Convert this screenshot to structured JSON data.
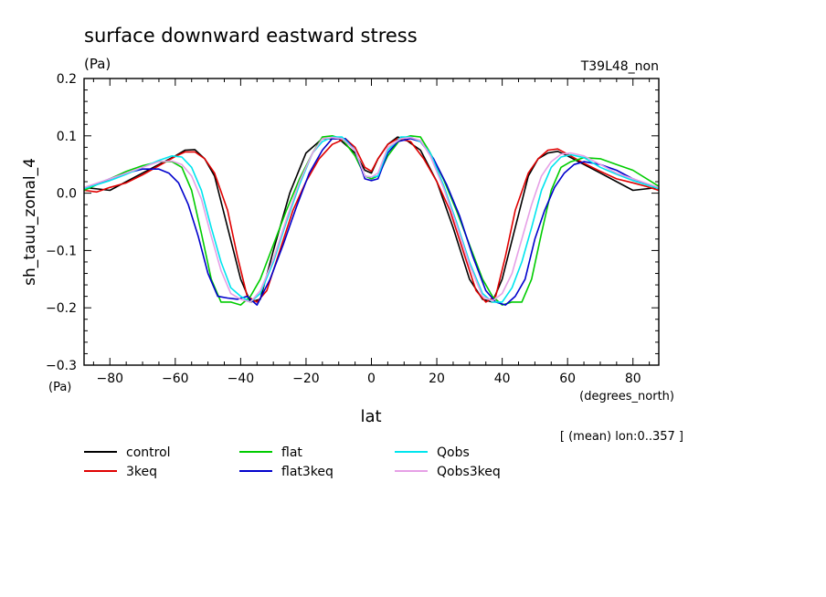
{
  "header": {
    "title": "surface downward eastward stress",
    "units": "(Pa)",
    "run_label": "T39L48_non"
  },
  "axes": {
    "ylabel": "sh_tauu_zonal_4",
    "y_units": "(Pa)",
    "xlabel": "lat",
    "x_units": "(degrees_north)",
    "note": "[ (mean) lon:0..357 ]"
  },
  "chart_data": {
    "type": "line",
    "title": "surface downward eastward stress",
    "xlabel": "lat",
    "ylabel": "sh_tauu_zonal_4",
    "xlim": [
      -87.9,
      87.9
    ],
    "ylim": [
      -0.3,
      0.2
    ],
    "xticks": [
      -80,
      -60,
      -40,
      -20,
      0,
      20,
      40,
      60,
      80
    ],
    "xtick_labels": [
      "−80",
      "−60",
      "−40",
      "−20",
      "0",
      "20",
      "40",
      "60",
      "80"
    ],
    "yticks": [
      0.2,
      0.1,
      0.0,
      -0.1,
      -0.2,
      -0.3
    ],
    "ytick_labels": [
      "0.2",
      "0.1",
      "0.0",
      "−0.1",
      "−0.2",
      "−0.3"
    ],
    "grid": false,
    "legend_position": "bottom",
    "series": [
      {
        "name": "control",
        "color": "#000000",
        "x": [
          -87.9,
          -80,
          -75,
          -70,
          -65,
          -60,
          -57,
          -54,
          -51,
          -48,
          -44,
          -40,
          -37,
          -34,
          -30,
          -25,
          -20,
          -15,
          -10,
          -5,
          -2,
          0,
          2,
          5,
          8,
          10,
          15,
          20,
          25,
          30,
          34,
          37,
          40,
          44,
          48,
          51,
          54,
          57,
          60,
          65,
          70,
          75,
          80,
          87.9
        ],
        "y": [
          0.01,
          0.005,
          0.02,
          0.035,
          0.05,
          0.065,
          0.075,
          0.076,
          0.06,
          0.03,
          -0.06,
          -0.15,
          -0.19,
          -0.185,
          -0.1,
          0.0,
          0.07,
          0.095,
          0.095,
          0.07,
          0.04,
          0.035,
          0.06,
          0.085,
          0.098,
          0.095,
          0.075,
          0.02,
          -0.06,
          -0.15,
          -0.185,
          -0.19,
          -0.15,
          -0.06,
          0.03,
          0.06,
          0.07,
          0.073,
          0.065,
          0.05,
          0.035,
          0.02,
          0.005,
          0.01
        ]
      },
      {
        "name": "3keq",
        "color": "#e00000",
        "x": [
          -87.9,
          -84,
          -80,
          -75,
          -70,
          -65,
          -60,
          -57,
          -54,
          -51,
          -48,
          -44,
          -41,
          -38,
          -35,
          -32,
          -28,
          -24,
          -20,
          -16,
          -12,
          -8,
          -5,
          -2,
          0,
          2,
          5,
          8,
          12,
          16,
          20,
          24,
          28,
          32,
          35,
          38,
          41,
          44,
          48,
          51,
          54,
          57,
          60,
          65,
          70,
          75,
          80,
          84,
          87.9
        ],
        "y": [
          0.005,
          0.002,
          0.01,
          0.018,
          0.032,
          0.048,
          0.064,
          0.072,
          0.072,
          0.06,
          0.035,
          -0.03,
          -0.11,
          -0.18,
          -0.19,
          -0.17,
          -0.1,
          -0.03,
          0.02,
          0.06,
          0.085,
          0.095,
          0.08,
          0.045,
          0.038,
          0.06,
          0.085,
          0.095,
          0.09,
          0.06,
          0.02,
          -0.03,
          -0.1,
          -0.17,
          -0.19,
          -0.18,
          -0.11,
          -0.03,
          0.035,
          0.06,
          0.075,
          0.077,
          0.068,
          0.052,
          0.038,
          0.025,
          0.018,
          0.012,
          0.005
        ]
      },
      {
        "name": "flat",
        "color": "#00cc00",
        "x": [
          -87.9,
          -80,
          -75,
          -70,
          -65,
          -61,
          -58,
          -55,
          -52,
          -49,
          -46,
          -43,
          -40,
          -37,
          -34,
          -30,
          -26,
          -22,
          -18,
          -15,
          -12,
          -9,
          -5,
          -2,
          0,
          2,
          5,
          9,
          12,
          15,
          18,
          22,
          26,
          30,
          34,
          37,
          40,
          43,
          46,
          49,
          52,
          55,
          58,
          61,
          65,
          70,
          75,
          80,
          87.9
        ],
        "y": [
          0.005,
          0.025,
          0.038,
          0.048,
          0.055,
          0.055,
          0.045,
          0.005,
          -0.07,
          -0.15,
          -0.19,
          -0.19,
          -0.195,
          -0.18,
          -0.15,
          -0.09,
          -0.03,
          0.025,
          0.07,
          0.098,
          0.1,
          0.095,
          0.065,
          0.03,
          0.025,
          0.03,
          0.065,
          0.095,
          0.1,
          0.098,
          0.07,
          0.025,
          -0.03,
          -0.09,
          -0.15,
          -0.18,
          -0.195,
          -0.19,
          -0.19,
          -0.15,
          -0.07,
          0.005,
          0.045,
          0.055,
          0.062,
          0.06,
          0.05,
          0.04,
          0.012
        ]
      },
      {
        "name": "flat3keq",
        "color": "#0000cc",
        "x": [
          -87.9,
          -80,
          -75,
          -70,
          -65,
          -62,
          -59,
          -56,
          -53,
          -50,
          -47,
          -44,
          -41,
          -38,
          -35,
          -31,
          -27,
          -23,
          -19,
          -15,
          -12,
          -8,
          -5,
          -2,
          0,
          2,
          5,
          8,
          12,
          15,
          19,
          23,
          27,
          31,
          35,
          38,
          41,
          44,
          47,
          50,
          53,
          56,
          59,
          62,
          65,
          70,
          75,
          80,
          87.9
        ],
        "y": [
          0.008,
          0.025,
          0.035,
          0.042,
          0.042,
          0.035,
          0.018,
          -0.02,
          -0.075,
          -0.14,
          -0.18,
          -0.183,
          -0.185,
          -0.18,
          -0.195,
          -0.15,
          -0.09,
          -0.025,
          0.035,
          0.075,
          0.095,
          0.095,
          0.075,
          0.025,
          0.022,
          0.025,
          0.07,
          0.09,
          0.095,
          0.09,
          0.06,
          0.015,
          -0.04,
          -0.11,
          -0.17,
          -0.19,
          -0.195,
          -0.18,
          -0.15,
          -0.08,
          -0.03,
          0.01,
          0.035,
          0.05,
          0.055,
          0.05,
          0.04,
          0.025,
          0.008
        ]
      },
      {
        "name": "Qobs",
        "color": "#00e5ee",
        "x": [
          -87.9,
          -80,
          -75,
          -70,
          -65,
          -61,
          -58,
          -55,
          -52,
          -49,
          -46,
          -43,
          -40,
          -37,
          -34,
          -30,
          -26,
          -22,
          -18,
          -15,
          -12,
          -9,
          -5,
          -2,
          0,
          2,
          5,
          9,
          12,
          15,
          18,
          22,
          26,
          30,
          34,
          37,
          40,
          43,
          46,
          49,
          52,
          55,
          58,
          61,
          65,
          70,
          75,
          80,
          87.9
        ],
        "y": [
          0.008,
          0.022,
          0.033,
          0.045,
          0.057,
          0.065,
          0.063,
          0.045,
          0.005,
          -0.06,
          -0.12,
          -0.165,
          -0.18,
          -0.19,
          -0.175,
          -0.12,
          -0.05,
          0.015,
          0.07,
          0.09,
          0.098,
          0.098,
          0.075,
          0.03,
          0.028,
          0.03,
          0.075,
          0.098,
          0.098,
          0.09,
          0.07,
          0.015,
          -0.05,
          -0.12,
          -0.175,
          -0.19,
          -0.19,
          -0.165,
          -0.12,
          -0.06,
          0.005,
          0.045,
          0.063,
          0.067,
          0.062,
          0.045,
          0.033,
          0.022,
          0.008
        ]
      },
      {
        "name": "Qobs3keq",
        "color": "#e6a0e6",
        "x": [
          -87.9,
          -80,
          -75,
          -70,
          -65,
          -61,
          -58,
          -55,
          -52,
          -49,
          -46,
          -43,
          -40,
          -37,
          -34,
          -30,
          -26,
          -22,
          -18,
          -15,
          -12,
          -9,
          -5,
          -2,
          0,
          2,
          5,
          9,
          12,
          15,
          18,
          22,
          26,
          30,
          34,
          37,
          40,
          43,
          46,
          49,
          52,
          55,
          58,
          61,
          65,
          70,
          75,
          80,
          87.9
        ],
        "y": [
          0.01,
          0.025,
          0.035,
          0.045,
          0.055,
          0.056,
          0.05,
          0.03,
          -0.01,
          -0.075,
          -0.135,
          -0.175,
          -0.185,
          -0.19,
          -0.17,
          -0.115,
          -0.045,
          0.02,
          0.07,
          0.095,
          0.097,
          0.095,
          0.075,
          0.03,
          0.028,
          0.035,
          0.08,
          0.095,
          0.097,
          0.092,
          0.065,
          0.01,
          -0.055,
          -0.125,
          -0.18,
          -0.188,
          -0.175,
          -0.14,
          -0.08,
          -0.02,
          0.03,
          0.055,
          0.068,
          0.07,
          0.065,
          0.05,
          0.035,
          0.025,
          0.01
        ]
      }
    ]
  }
}
